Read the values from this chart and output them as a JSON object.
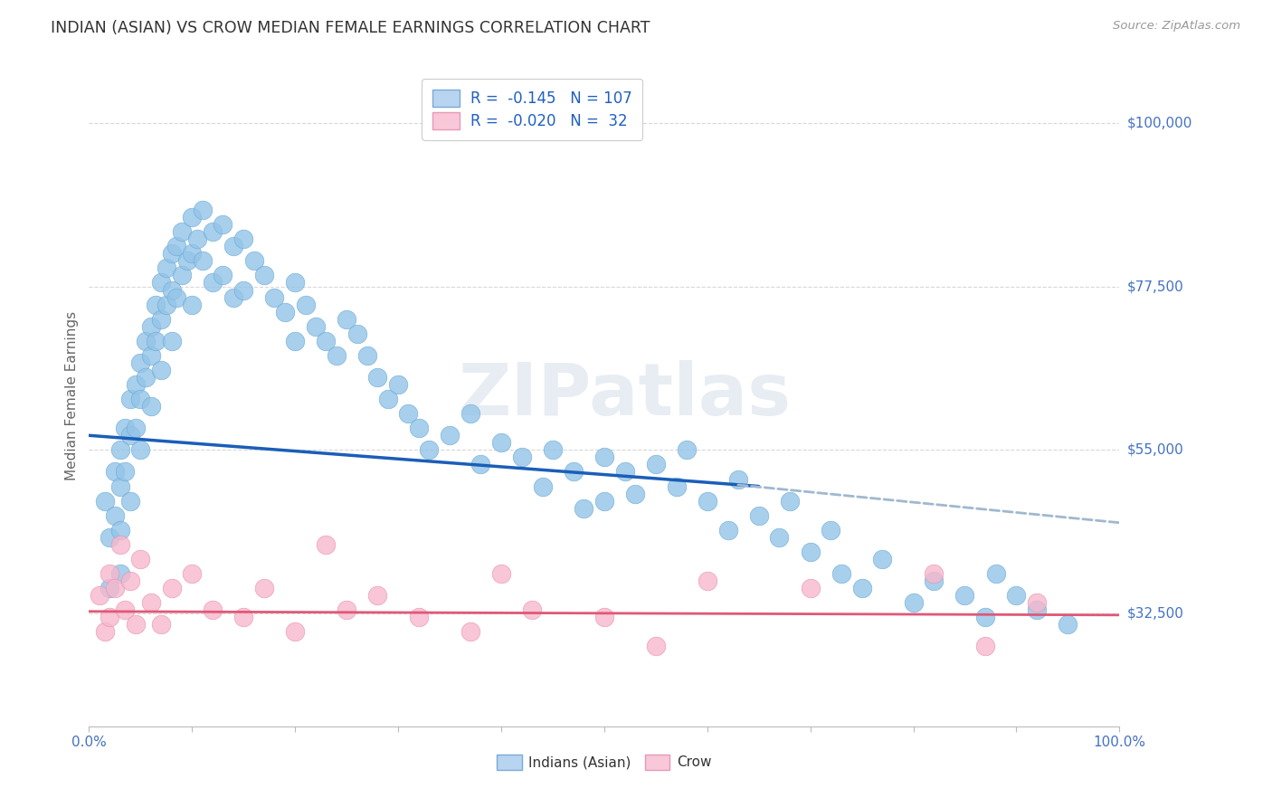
{
  "title": "INDIAN (ASIAN) VS CROW MEDIAN FEMALE EARNINGS CORRELATION CHART",
  "source": "Source: ZipAtlas.com",
  "ylabel": "Median Female Earnings",
  "watermark": "ZIPatlas",
  "ytick_labels": [
    "$32,500",
    "$55,000",
    "$77,500",
    "$100,000"
  ],
  "ytick_values": [
    32500,
    55000,
    77500,
    100000
  ],
  "ylim": [
    17000,
    108000
  ],
  "xlim": [
    0.0,
    1.0
  ],
  "legend_text_blue": "R =  -0.145   N = 107",
  "legend_text_pink": "R =  -0.020   N =  32",
  "legend_labels_bottom": [
    "Indians (Asian)",
    "Crow"
  ],
  "blue_scatter_color": "#93c4e8",
  "blue_scatter_edge": "#6aaad4",
  "pink_scatter_color": "#f7b8cc",
  "pink_scatter_edge": "#e890ac",
  "blue_line_color": "#1a5eb8",
  "pink_line_color": "#e05878",
  "dashed_line_color": "#a0b8d0",
  "grid_color": "#d8d8d8",
  "background_color": "#ffffff",
  "title_color": "#333333",
  "axis_label_color": "#666666",
  "ytick_label_color": "#4472c4",
  "xtick_label_color": "#4472c4",
  "source_color": "#999999",
  "legend_text_color": "#2060c0",
  "blue_line_x0": 0.0,
  "blue_line_x1": 0.65,
  "blue_line_y0": 57000,
  "blue_line_y1": 50000,
  "dash_line_x0": 0.63,
  "dash_line_x1": 1.0,
  "dash_line_y0": 50200,
  "dash_line_y1": 45000,
  "pink_line_x0": 0.0,
  "pink_line_x1": 1.0,
  "pink_line_y0": 32800,
  "pink_line_y1": 32300,
  "blue_x": [
    0.015,
    0.02,
    0.02,
    0.025,
    0.025,
    0.03,
    0.03,
    0.03,
    0.03,
    0.035,
    0.035,
    0.04,
    0.04,
    0.04,
    0.045,
    0.045,
    0.05,
    0.05,
    0.05,
    0.055,
    0.055,
    0.06,
    0.06,
    0.06,
    0.065,
    0.065,
    0.07,
    0.07,
    0.07,
    0.075,
    0.075,
    0.08,
    0.08,
    0.08,
    0.085,
    0.085,
    0.09,
    0.09,
    0.095,
    0.1,
    0.1,
    0.1,
    0.105,
    0.11,
    0.11,
    0.12,
    0.12,
    0.13,
    0.13,
    0.14,
    0.14,
    0.15,
    0.15,
    0.16,
    0.17,
    0.18,
    0.19,
    0.2,
    0.2,
    0.21,
    0.22,
    0.23,
    0.24,
    0.25,
    0.26,
    0.27,
    0.28,
    0.29,
    0.3,
    0.31,
    0.32,
    0.33,
    0.35,
    0.37,
    0.38,
    0.4,
    0.42,
    0.44,
    0.45,
    0.47,
    0.48,
    0.5,
    0.5,
    0.52,
    0.53,
    0.55,
    0.57,
    0.58,
    0.6,
    0.62,
    0.63,
    0.65,
    0.67,
    0.68,
    0.7,
    0.72,
    0.73,
    0.75,
    0.77,
    0.8,
    0.82,
    0.85,
    0.87,
    0.88,
    0.9,
    0.92,
    0.95
  ],
  "blue_y": [
    48000,
    43000,
    36000,
    52000,
    46000,
    55000,
    50000,
    44000,
    38000,
    58000,
    52000,
    62000,
    57000,
    48000,
    64000,
    58000,
    67000,
    62000,
    55000,
    70000,
    65000,
    72000,
    68000,
    61000,
    75000,
    70000,
    78000,
    73000,
    66000,
    80000,
    75000,
    82000,
    77000,
    70000,
    83000,
    76000,
    85000,
    79000,
    81000,
    87000,
    82000,
    75000,
    84000,
    88000,
    81000,
    85000,
    78000,
    86000,
    79000,
    83000,
    76000,
    84000,
    77000,
    81000,
    79000,
    76000,
    74000,
    78000,
    70000,
    75000,
    72000,
    70000,
    68000,
    73000,
    71000,
    68000,
    65000,
    62000,
    64000,
    60000,
    58000,
    55000,
    57000,
    60000,
    53000,
    56000,
    54000,
    50000,
    55000,
    52000,
    47000,
    54000,
    48000,
    52000,
    49000,
    53000,
    50000,
    55000,
    48000,
    44000,
    51000,
    46000,
    43000,
    48000,
    41000,
    44000,
    38000,
    36000,
    40000,
    34000,
    37000,
    35000,
    32000,
    38000,
    35000,
    33000,
    31000
  ],
  "pink_x": [
    0.01,
    0.015,
    0.02,
    0.02,
    0.025,
    0.03,
    0.035,
    0.04,
    0.045,
    0.05,
    0.06,
    0.07,
    0.08,
    0.1,
    0.12,
    0.15,
    0.17,
    0.2,
    0.23,
    0.25,
    0.28,
    0.32,
    0.37,
    0.4,
    0.43,
    0.5,
    0.55,
    0.6,
    0.7,
    0.82,
    0.87,
    0.92
  ],
  "pink_y": [
    35000,
    30000,
    38000,
    32000,
    36000,
    42000,
    33000,
    37000,
    31000,
    40000,
    34000,
    31000,
    36000,
    38000,
    33000,
    32000,
    36000,
    30000,
    42000,
    33000,
    35000,
    32000,
    30000,
    38000,
    33000,
    32000,
    28000,
    37000,
    36000,
    38000,
    28000,
    34000
  ]
}
